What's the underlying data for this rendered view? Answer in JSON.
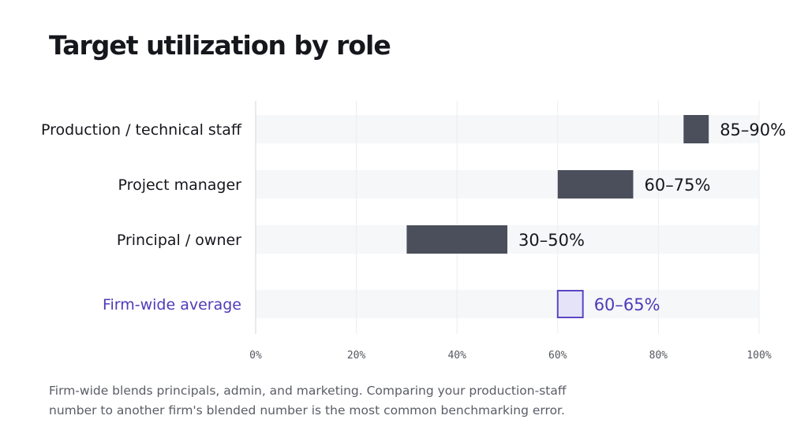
{
  "title": "Target utilization by role",
  "caption": "Firm-wide blends principals, admin, and marketing. Comparing your production-staff number to another firm's blended number is the most common benchmarking error.",
  "chart_data": {
    "type": "bar",
    "subtype": "range",
    "orientation": "horizontal",
    "categories": [
      "Production / technical staff",
      "Project manager",
      "Principal / owner",
      "Firm-wide average"
    ],
    "ranges": [
      {
        "category": "Production / technical staff",
        "low": 85,
        "high": 90,
        "label": "85–90%"
      },
      {
        "category": "Project manager",
        "low": 60,
        "high": 75,
        "label": "60–75%"
      },
      {
        "category": "Principal / owner",
        "low": 30,
        "high": 50,
        "label": "30–50%"
      },
      {
        "category": "Firm-wide average",
        "low": 60,
        "high": 65,
        "label": "60–65%",
        "highlight": true
      }
    ],
    "xlim": [
      0,
      100
    ],
    "xticks": [
      0,
      20,
      40,
      60,
      80,
      100
    ],
    "xtick_labels": [
      "0%",
      "20%",
      "40%",
      "60%",
      "80%",
      "100%"
    ],
    "grid": true,
    "colors": {
      "bar": "#4a4f5b",
      "highlight_fill": "#e5e3f7",
      "highlight_stroke": "#5b45c4",
      "highlight_text": "#4f3bb8",
      "row_band": "#f6f7f9",
      "grid": "#ebecee",
      "axis": "#d5d7db"
    }
  }
}
